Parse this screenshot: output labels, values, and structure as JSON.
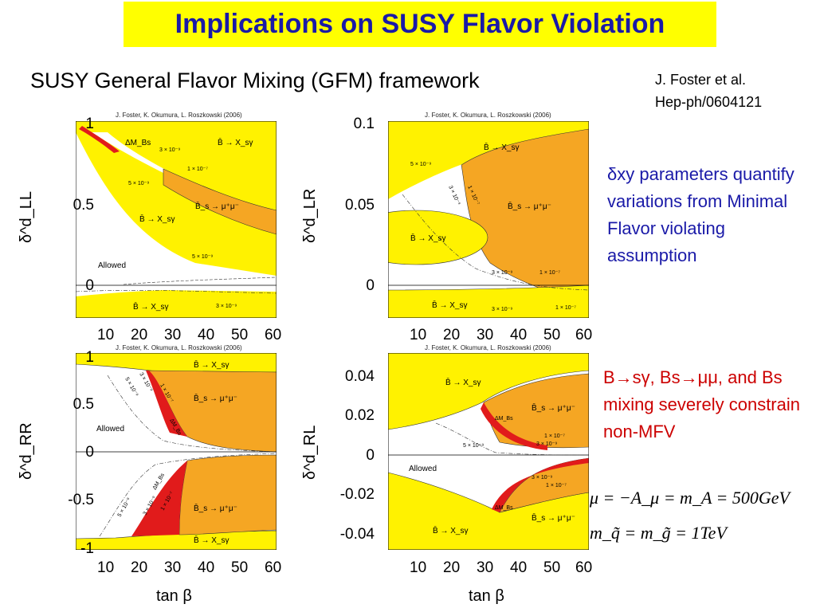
{
  "title": "Implications on SUSY Flavor Violation",
  "subtitle": "SUSY General Flavor Mixing (GFM) framework",
  "reference": {
    "line1": "J. Foster et al.",
    "line2": "Hep-ph/0604121"
  },
  "note_blue": "δxy parameters quantify variations from Minimal Flavor violating assumption",
  "note_red": "B→sγ, Bs→μμ, and Bs mixing severely constrain non-MFV",
  "equation1": "μ = −A_μ = m_A = 500GeV",
  "equation2": "m_q̃ = m_g̃ = 1TeV",
  "plot_citation": "J. Foster, K. Okumura, L. Roszkowski (2006)",
  "x_axis_label": "tan β",
  "x_ticks": [
    "10",
    "20",
    "30",
    "40",
    "50",
    "60"
  ],
  "colors": {
    "title_bg": "#ffff00",
    "title_text": "#1a1aa8",
    "excluded_yellow": "#fff200",
    "excluded_orange": "#f5a623",
    "excluded_red": "#e11b1b",
    "note_red": "#cc0000"
  },
  "plots": [
    {
      "id": "LL",
      "ylabel": "δ^d_LL",
      "y_ticks": [
        "1",
        "0.5",
        "0"
      ],
      "labels": [
        "ΔM_Bs",
        "3 × 10⁻⁹",
        "1 × 10⁻⁷",
        "5 × 10⁻⁹",
        "B̄ → X_sγ",
        "B̄_s → μ⁺μ⁻",
        "B̄ → X_sγ",
        "Allowed",
        "5 × 10⁻⁹",
        "B̄ → X_sγ",
        "3 × 10⁻⁹"
      ]
    },
    {
      "id": "LR",
      "ylabel": "δ^d_LR",
      "y_ticks": [
        "0.1",
        "0.05",
        "0"
      ],
      "labels": [
        "B̄ → X_sγ",
        "5 × 10⁻⁹",
        "3 × 10⁻⁹",
        "1 × 10⁻⁷",
        "B̄_s → μ⁺μ⁻",
        "B̄ → X_sγ",
        "3 × 10⁻⁹",
        "1 × 10⁻⁷",
        "B̄ → X_sγ",
        "3 × 10⁻⁹",
        "1 × 10⁻⁷"
      ]
    },
    {
      "id": "RR",
      "ylabel": "δ^d_RR",
      "y_ticks": [
        "1",
        "0.5",
        "0",
        "-0.5",
        "-1"
      ],
      "labels": [
        "B̄ → X_sγ",
        "3 × 10⁻⁹",
        "5 × 10⁻⁹",
        "1 × 10⁻⁷",
        "ΔM_Bs",
        "B̄_s → μ⁺μ⁻",
        "Allowed",
        "ΔM_Bs",
        "1 × 10⁻⁷",
        "3 × 10⁻⁹",
        "5 × 10⁻⁹",
        "B̄_s → μ⁺μ⁻",
        "B̄ → X_sγ"
      ]
    },
    {
      "id": "RL",
      "ylabel": "δ^d_RL",
      "y_ticks": [
        "0.04",
        "0.02",
        "0",
        "-0.02",
        "-0.04"
      ],
      "labels": [
        "B̄ → X_sγ",
        "ΔM_Bs",
        "B̄_s → μ⁺μ⁻",
        "1 × 10⁻⁷",
        "3 × 10⁻⁹",
        "5 × 10⁻⁹",
        "Allowed",
        "3 × 10⁻⁹",
        "1 × 10⁻⁷",
        "ΔM_Bs",
        "B̄_s → μ⁺μ⁻",
        "B̄ → X_sγ"
      ]
    }
  ]
}
